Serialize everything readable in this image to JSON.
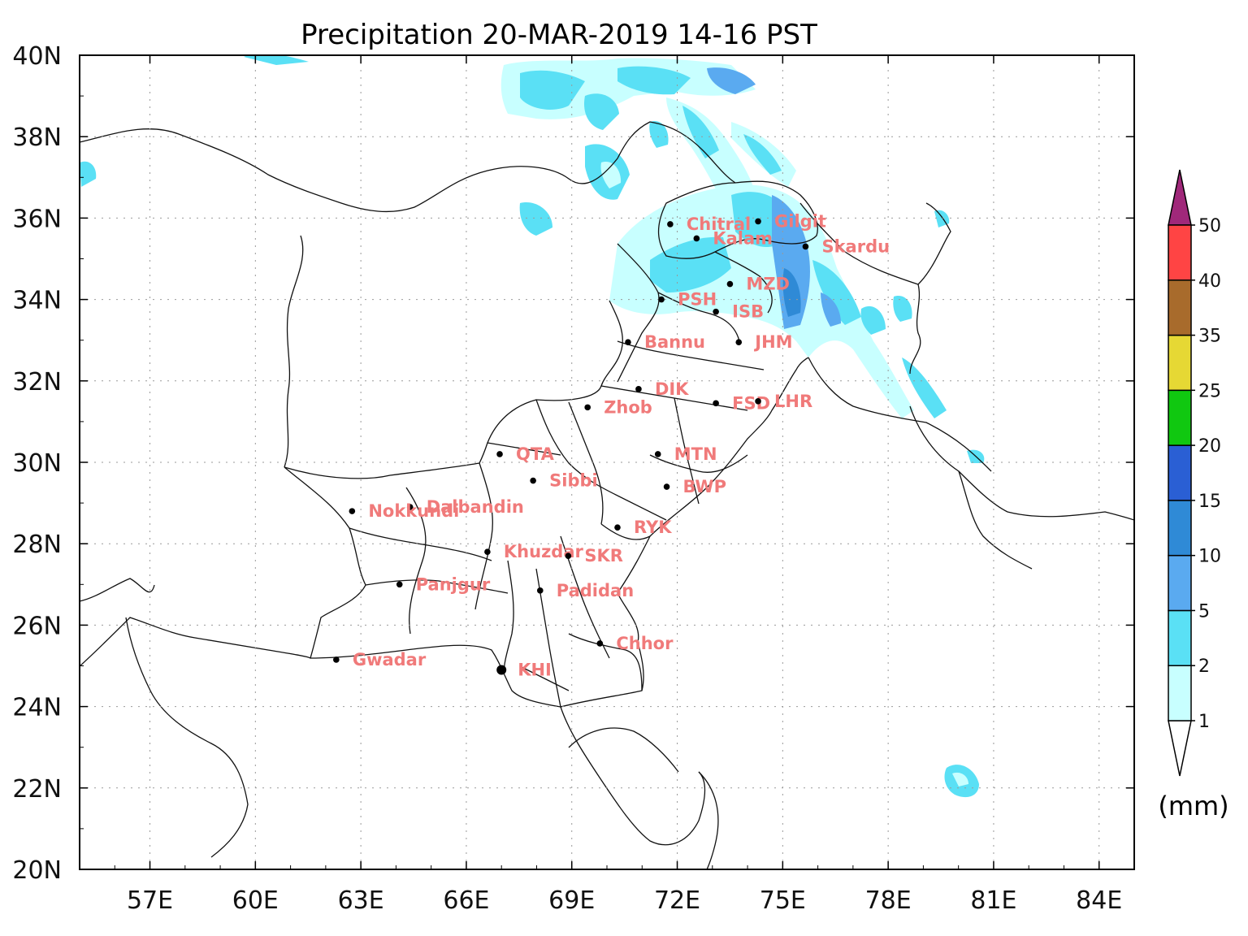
{
  "title": "Precipitation 20-MAR-2019 14-16 PST",
  "axes": {
    "lon_ticks": [
      {
        "v": 57,
        "label": "57E"
      },
      {
        "v": 60,
        "label": "60E"
      },
      {
        "v": 63,
        "label": "63E"
      },
      {
        "v": 66,
        "label": "66E"
      },
      {
        "v": 69,
        "label": "69E"
      },
      {
        "v": 72,
        "label": "72E"
      },
      {
        "v": 75,
        "label": "75E"
      },
      {
        "v": 78,
        "label": "78E"
      },
      {
        "v": 81,
        "label": "81E"
      },
      {
        "v": 84,
        "label": "84E"
      }
    ],
    "lat_ticks": [
      {
        "v": 20,
        "label": "20N"
      },
      {
        "v": 22,
        "label": "22N"
      },
      {
        "v": 24,
        "label": "24N"
      },
      {
        "v": 26,
        "label": "26N"
      },
      {
        "v": 28,
        "label": "28N"
      },
      {
        "v": 30,
        "label": "30N"
      },
      {
        "v": 32,
        "label": "32N"
      },
      {
        "v": 34,
        "label": "34N"
      },
      {
        "v": 36,
        "label": "36N"
      },
      {
        "v": 38,
        "label": "38N"
      },
      {
        "v": 40,
        "label": "40N"
      }
    ],
    "lon_range": [
      55,
      85
    ],
    "lat_range": [
      20,
      40
    ],
    "grid": true
  },
  "colorbar": {
    "unit": "(mm)",
    "levels": [
      "1",
      "2",
      "5",
      "10",
      "15",
      "20",
      "25",
      "35",
      "40",
      "50"
    ],
    "colors": [
      "#ffffff",
      "#c8ffff",
      "#5ae0f5",
      "#5aaaf0",
      "#2f8ad6",
      "#2a5fd4",
      "#10c810",
      "#e6d834",
      "#a86b2c",
      "#ff4444",
      "#a0287a"
    ]
  },
  "cities": [
    {
      "name": "Chitral",
      "lon": 71.8,
      "lat": 35.85
    },
    {
      "name": "Gilgit",
      "lon": 74.3,
      "lat": 35.92
    },
    {
      "name": "Kalam",
      "lon": 72.55,
      "lat": 35.5
    },
    {
      "name": "Skardu",
      "lon": 75.65,
      "lat": 35.3
    },
    {
      "name": "MZD",
      "lon": 73.5,
      "lat": 34.38
    },
    {
      "name": "PSH",
      "lon": 71.55,
      "lat": 34.0
    },
    {
      "name": "ISB",
      "lon": 73.1,
      "lat": 33.7
    },
    {
      "name": "Bannu",
      "lon": 70.6,
      "lat": 32.95
    },
    {
      "name": "JHM",
      "lon": 73.75,
      "lat": 32.95
    },
    {
      "name": "DIK",
      "lon": 70.9,
      "lat": 31.8
    },
    {
      "name": "Zhob",
      "lon": 69.45,
      "lat": 31.35
    },
    {
      "name": "FSD",
      "lon": 73.1,
      "lat": 31.45
    },
    {
      "name": "LHR",
      "lon": 74.3,
      "lat": 31.5
    },
    {
      "name": "QTA",
      "lon": 66.95,
      "lat": 30.2
    },
    {
      "name": "MTN",
      "lon": 71.45,
      "lat": 30.2
    },
    {
      "name": "Sibbi",
      "lon": 67.9,
      "lat": 29.55
    },
    {
      "name": "BWP",
      "lon": 71.7,
      "lat": 29.4
    },
    {
      "name": "Dalbandin",
      "lon": 64.4,
      "lat": 28.9
    },
    {
      "name": "Nokkundi",
      "lon": 62.75,
      "lat": 28.8
    },
    {
      "name": "RYK",
      "lon": 70.3,
      "lat": 28.4
    },
    {
      "name": "Khuzdar",
      "lon": 66.6,
      "lat": 27.8
    },
    {
      "name": "SKR",
      "lon": 68.9,
      "lat": 27.7
    },
    {
      "name": "Panjgur",
      "lon": 64.1,
      "lat": 27.0
    },
    {
      "name": "Padidan",
      "lon": 68.1,
      "lat": 26.85
    },
    {
      "name": "Chhor",
      "lon": 69.8,
      "lat": 25.55
    },
    {
      "name": "Gwadar",
      "lon": 62.3,
      "lat": 25.15
    },
    {
      "name": "KHI",
      "lon": 67.0,
      "lat": 24.9
    }
  ]
}
